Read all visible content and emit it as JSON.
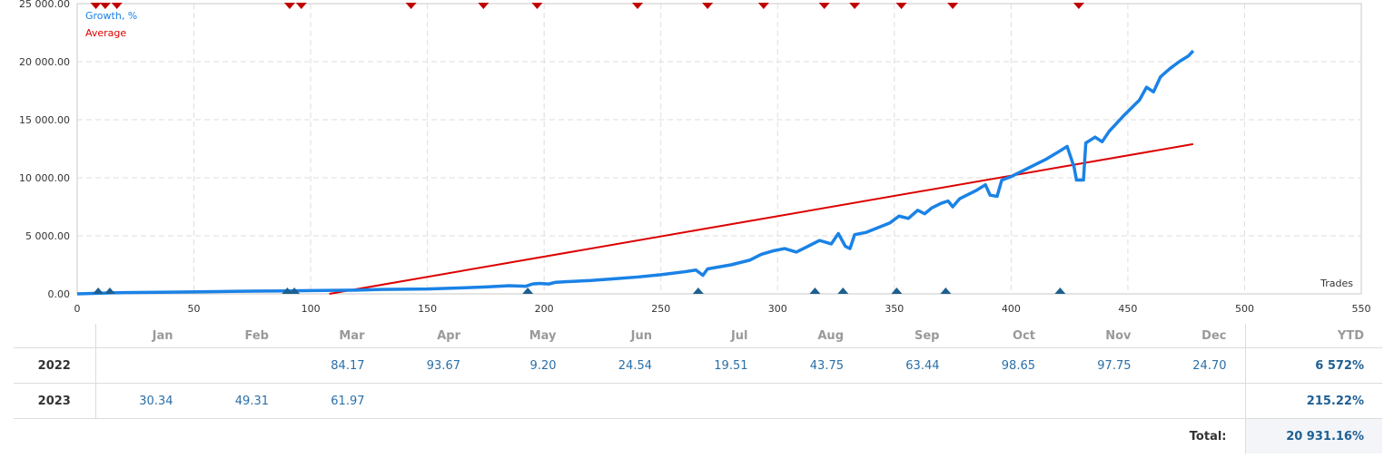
{
  "chart_data": {
    "type": "line",
    "xlabel": "Trades",
    "xlim": [
      0,
      550
    ],
    "ylim": [
      0,
      25000
    ],
    "x_ticks": [
      0,
      50,
      100,
      150,
      200,
      250,
      300,
      350,
      400,
      450,
      500,
      550
    ],
    "y_ticks": [
      0,
      5000,
      10000,
      15000,
      20000,
      25000
    ],
    "y_tick_labels": [
      "0.00",
      "5 000.00",
      "10 000.00",
      "15 000.00",
      "20 000.00",
      "25 000.00"
    ],
    "grid": true,
    "legend_position": "top-left",
    "series": [
      {
        "name": "Growth, %",
        "color": "#1a82e6",
        "points": [
          [
            0,
            0
          ],
          [
            10,
            60
          ],
          [
            20,
            110
          ],
          [
            40,
            150
          ],
          [
            60,
            200
          ],
          [
            75,
            230
          ],
          [
            90,
            250
          ],
          [
            100,
            280
          ],
          [
            110,
            300
          ],
          [
            120,
            320
          ],
          [
            130,
            380
          ],
          [
            150,
            420
          ],
          [
            165,
            520
          ],
          [
            175,
            600
          ],
          [
            185,
            700
          ],
          [
            192,
            650
          ],
          [
            195,
            850
          ],
          [
            198,
            900
          ],
          [
            202,
            850
          ],
          [
            205,
            1000
          ],
          [
            210,
            1050
          ],
          [
            220,
            1150
          ],
          [
            230,
            1300
          ],
          [
            240,
            1450
          ],
          [
            250,
            1650
          ],
          [
            260,
            1900
          ],
          [
            265,
            2050
          ],
          [
            268,
            1600
          ],
          [
            270,
            2150
          ],
          [
            280,
            2500
          ],
          [
            288,
            2900
          ],
          [
            293,
            3400
          ],
          [
            298,
            3700
          ],
          [
            303,
            3900
          ],
          [
            308,
            3600
          ],
          [
            313,
            4100
          ],
          [
            318,
            4600
          ],
          [
            323,
            4300
          ],
          [
            326,
            5200
          ],
          [
            329,
            4100
          ],
          [
            331,
            3900
          ],
          [
            333,
            5100
          ],
          [
            338,
            5300
          ],
          [
            343,
            5700
          ],
          [
            348,
            6100
          ],
          [
            352,
            6700
          ],
          [
            356,
            6500
          ],
          [
            360,
            7200
          ],
          [
            363,
            6900
          ],
          [
            366,
            7400
          ],
          [
            370,
            7800
          ],
          [
            373,
            8000
          ],
          [
            375,
            7500
          ],
          [
            378,
            8200
          ],
          [
            382,
            8600
          ],
          [
            385,
            8900
          ],
          [
            389,
            9400
          ],
          [
            391,
            8500
          ],
          [
            394,
            8400
          ],
          [
            396,
            9800
          ],
          [
            400,
            10100
          ],
          [
            405,
            10600
          ],
          [
            410,
            11100
          ],
          [
            415,
            11600
          ],
          [
            420,
            12200
          ],
          [
            424,
            12700
          ],
          [
            427,
            10900
          ],
          [
            428,
            9800
          ],
          [
            431,
            9800
          ],
          [
            432,
            13000
          ],
          [
            436,
            13500
          ],
          [
            439,
            13100
          ],
          [
            442,
            14000
          ],
          [
            448,
            15300
          ],
          [
            455,
            16700
          ],
          [
            458,
            17800
          ],
          [
            461,
            17400
          ],
          [
            464,
            18700
          ],
          [
            468,
            19400
          ],
          [
            472,
            20000
          ],
          [
            476,
            20500
          ],
          [
            478,
            20931
          ]
        ]
      },
      {
        "name": "Average",
        "color": "#dd0000",
        "points": [
          [
            108,
            0
          ],
          [
            478,
            12900
          ]
        ]
      }
    ],
    "sell_markers_x": [
      8,
      12,
      17,
      91,
      96,
      143,
      174,
      197,
      240,
      270,
      294,
      320,
      333,
      353,
      375,
      429
    ],
    "buy_markers_x": [
      9,
      14,
      90,
      93,
      193,
      266,
      316,
      328,
      351,
      372,
      421
    ],
    "marker_colors": {
      "sell": "#c00000",
      "buy": "#1e5f8e"
    }
  },
  "table": {
    "months": [
      "Jan",
      "Feb",
      "Mar",
      "Apr",
      "May",
      "Jun",
      "Jul",
      "Aug",
      "Sep",
      "Oct",
      "Nov",
      "Dec"
    ],
    "ytd_header": "YTD",
    "rows": [
      {
        "year": "2022",
        "values": [
          "",
          "",
          "84.17",
          "93.67",
          "9.20",
          "24.54",
          "19.51",
          "43.75",
          "63.44",
          "98.65",
          "97.75",
          "24.70"
        ],
        "ytd": "6 572%"
      },
      {
        "year": "2023",
        "values": [
          "30.34",
          "49.31",
          "61.97",
          "",
          "",
          "",
          "",
          "",
          "",
          "",
          "",
          ""
        ],
        "ytd": "215.22%"
      }
    ],
    "total_label": "Total:",
    "total_value": "20 931.16%"
  }
}
